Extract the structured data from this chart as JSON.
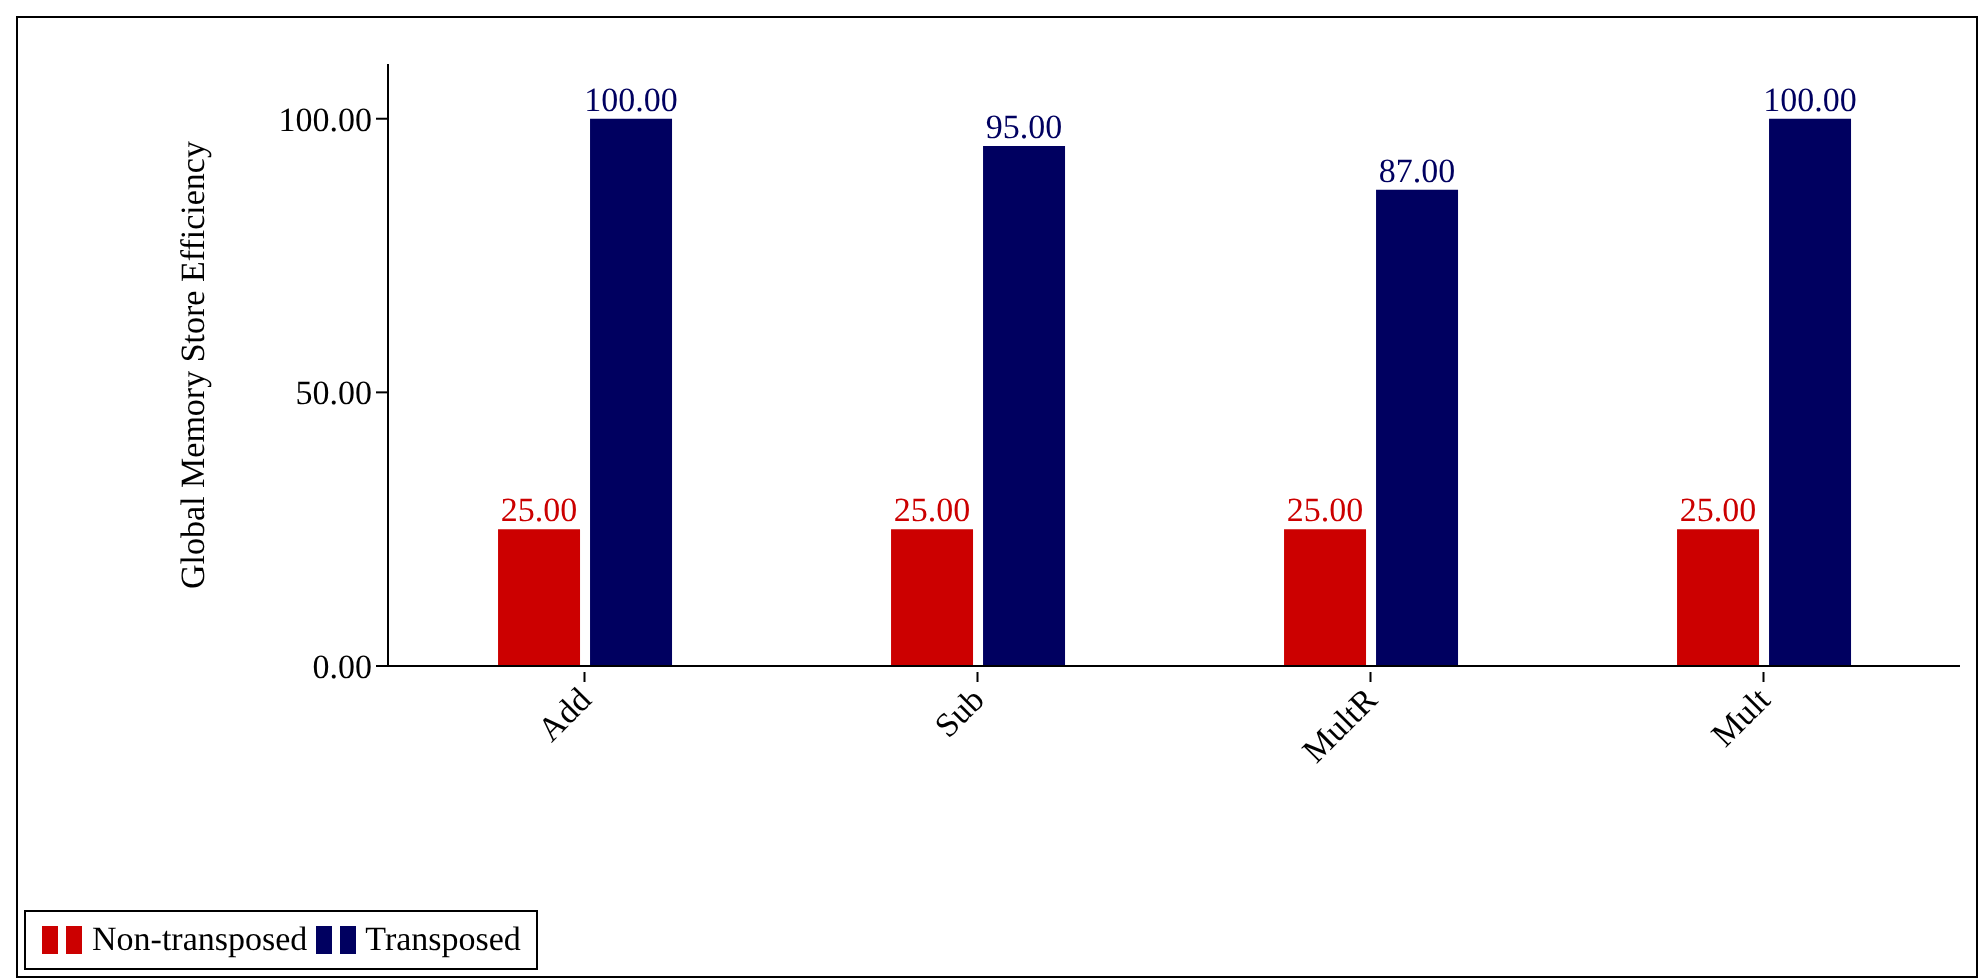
{
  "chart_data": {
    "type": "bar",
    "ylabel": "Global Memory Store Efficiency",
    "categories": [
      "Add",
      "Sub",
      "MultR",
      "Mult"
    ],
    "series": [
      {
        "name": "Non-transposed",
        "color": "#cc0000",
        "values": [
          25,
          25,
          25,
          25
        ],
        "value_labels": [
          "25.00",
          "25.00",
          "25.00",
          "25.00"
        ]
      },
      {
        "name": "Transposed",
        "color": "#000060",
        "values": [
          100,
          95,
          87,
          100
        ],
        "value_labels": [
          "100.00",
          "95.00",
          "87.00",
          "100.00"
        ]
      }
    ],
    "ylim": [
      0,
      110
    ],
    "yticks": [
      {
        "value": 0,
        "label": "0.00"
      },
      {
        "value": 50,
        "label": "50.00"
      },
      {
        "value": 100,
        "label": "100.00"
      }
    ],
    "grid": false,
    "legend": "bottom left"
  }
}
